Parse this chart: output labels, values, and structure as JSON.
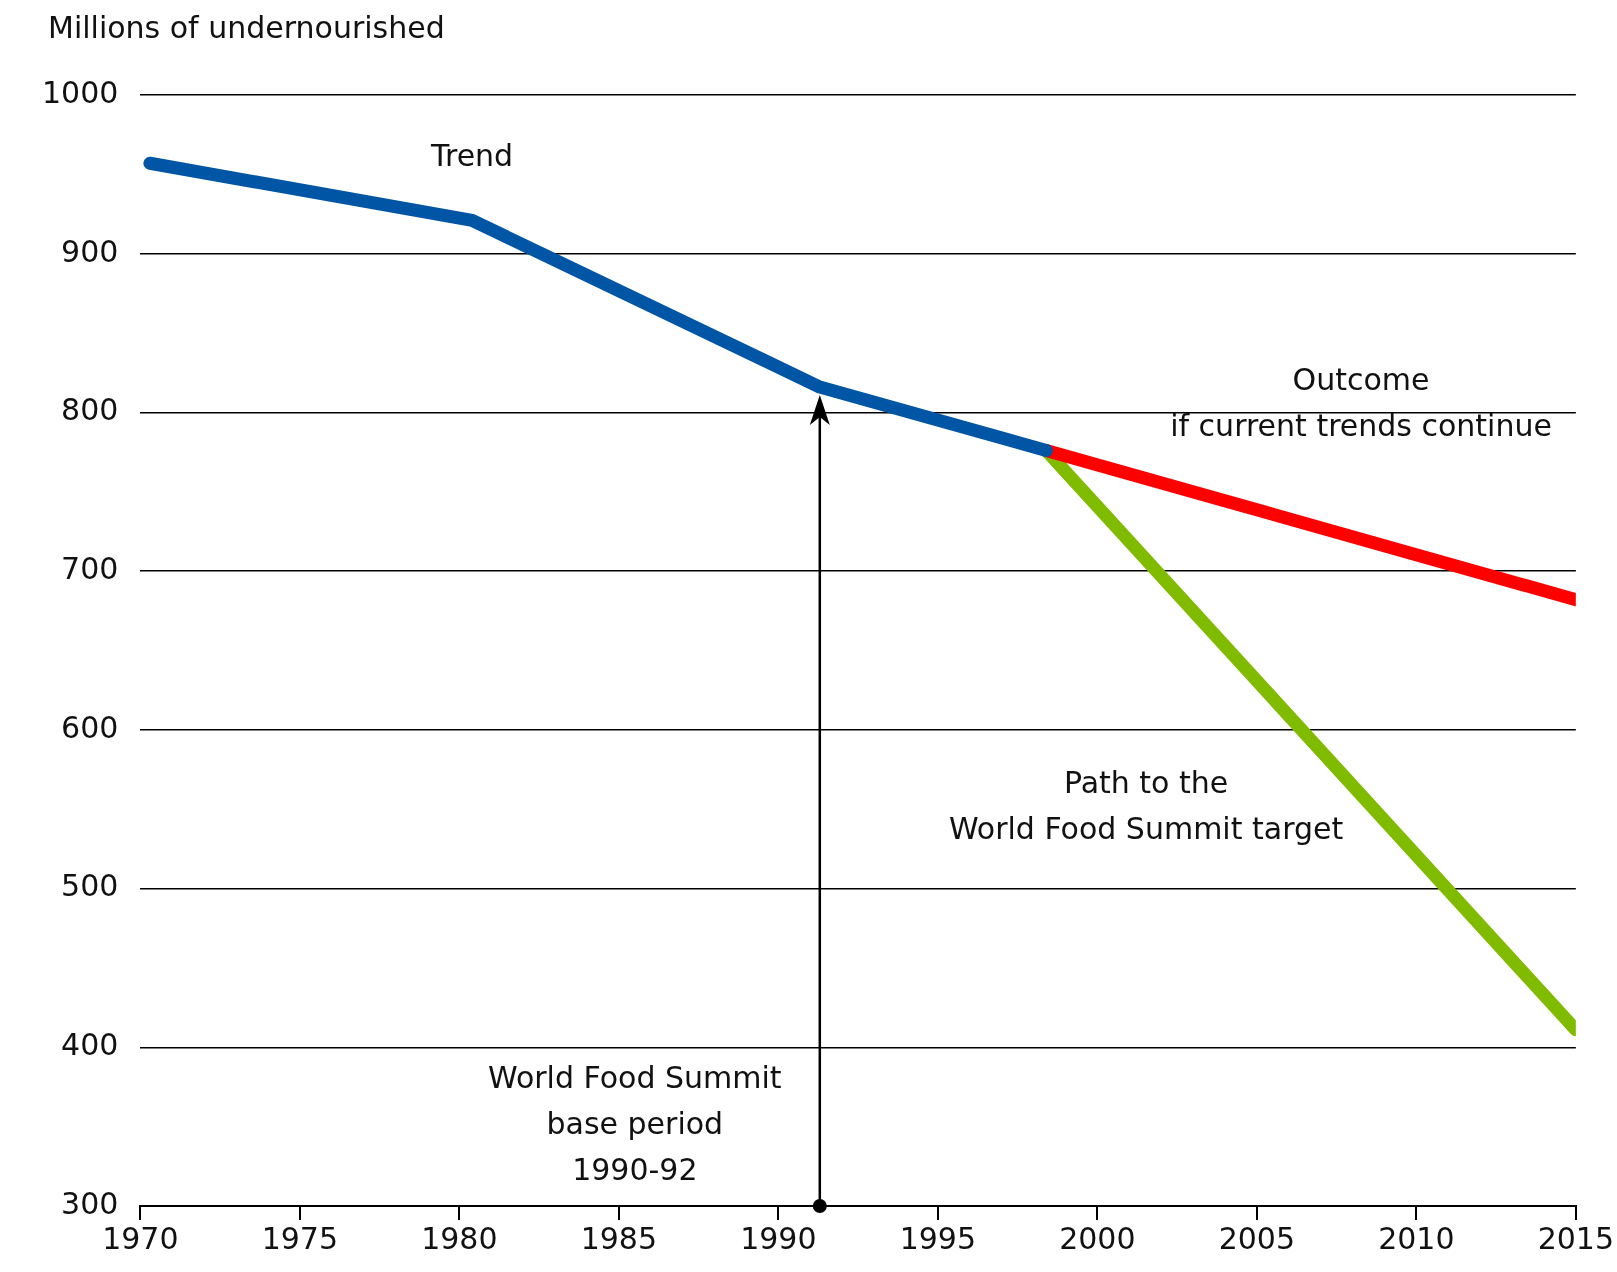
{
  "chart_data": {
    "type": "line",
    "ylabel": "Millions of undernourished",
    "series": [
      {
        "color": "#0055a5",
        "x": [
          1970.3,
          1980.4,
          1991.3,
          1998.4
        ],
        "values": [
          957,
          921,
          816,
          776
        ]
      },
      {
        "color": "#ff0000",
        "x": [
          1998.4,
          2015
        ],
        "values": [
          776,
          682
        ]
      },
      {
        "color": "#80bb00",
        "x": [
          1998.4,
          2015
        ],
        "values": [
          776,
          411
        ]
      }
    ],
    "xlim": [
      1970,
      2015
    ],
    "xticks": [
      1970,
      1975,
      1980,
      1985,
      1990,
      1995,
      2000,
      2005,
      2010,
      2015
    ],
    "ylim": [
      300,
      1000
    ],
    "yticks": [
      300,
      400,
      500,
      600,
      700,
      800,
      900,
      1000
    ],
    "grid": "y",
    "legend": false,
    "marker": "none",
    "line_style": "solid",
    "ref_lines": [
      {
        "axis": "x",
        "value": 1991.3,
        "label": "World Food Summit\nbase period\n1990-92"
      }
    ],
    "annotations": [
      "Trend",
      "Outcome\nif current trends continue",
      "Path to the\nWorld Food Summit target"
    ]
  }
}
